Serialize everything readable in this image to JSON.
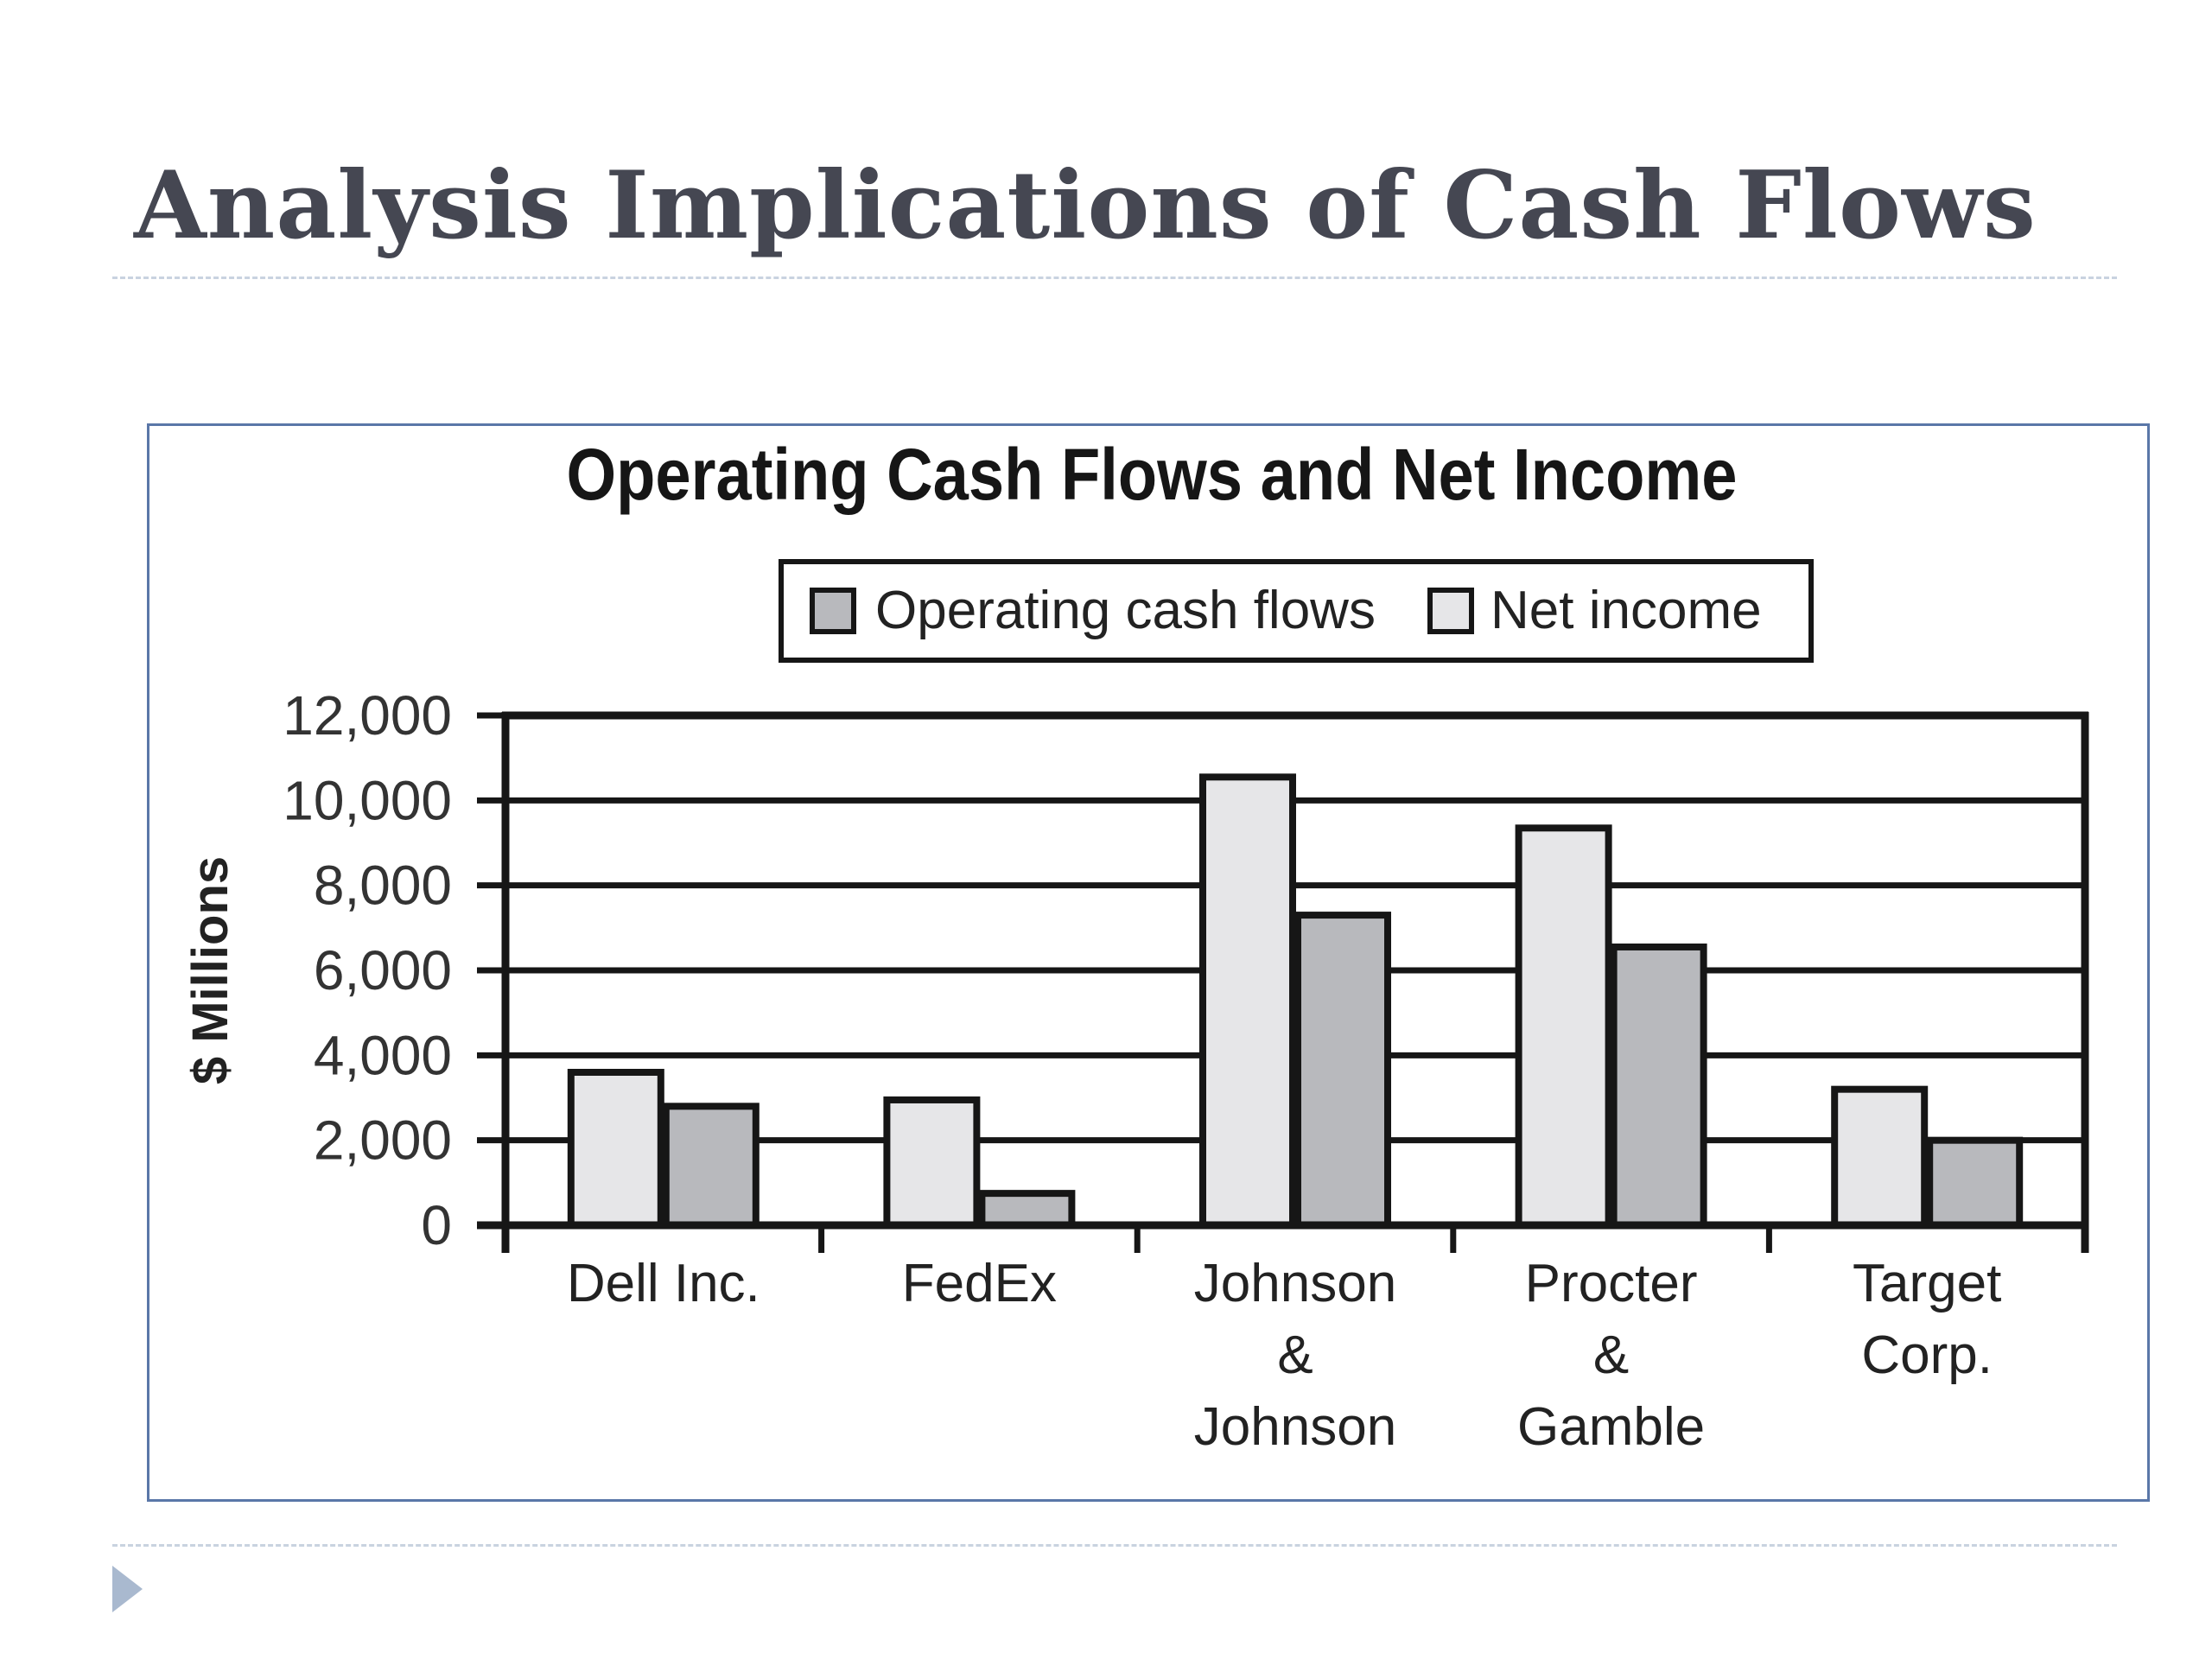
{
  "slide": {
    "title": "Analysis Implications of Cash Flows"
  },
  "colors": {
    "title": "#454752",
    "frame_border": "#5a77a8",
    "rule": "#c9d3e0",
    "bullet": "#a9b9cf",
    "net_income_fill": "#e6e6e8",
    "operating_cash_flows_fill": "#b8b9bd",
    "axis": "#161616"
  },
  "chart_data": {
    "type": "bar",
    "title": "Operating Cash Flows and Net Income",
    "ylabel": "$ Millions",
    "xlabel": "",
    "ylim": [
      0,
      12000
    ],
    "yticks": [
      0,
      2000,
      4000,
      6000,
      8000,
      10000,
      12000
    ],
    "ytick_labels": [
      "0",
      "2,000",
      "4,000",
      "6,000",
      "8,000",
      "10,000",
      "12,000"
    ],
    "grid": true,
    "legend": "top-center",
    "legend_entries": [
      "Operating cash flows",
      "Net income"
    ],
    "categories": [
      [
        "Dell Inc."
      ],
      [
        "FedEx"
      ],
      [
        "Johnson",
        "&",
        "Johnson"
      ],
      [
        "Procter",
        "&",
        "Gamble"
      ],
      [
        "Target",
        "Corp."
      ]
    ],
    "series": [
      {
        "name": "Net income",
        "color": "#e6e6e8",
        "values": [
          3600,
          2950,
          10550,
          9350,
          3200
        ]
      },
      {
        "name": "Operating cash flows",
        "color": "#b8b9bd",
        "values": [
          2800,
          750,
          7300,
          6550,
          2000
        ]
      }
    ]
  }
}
